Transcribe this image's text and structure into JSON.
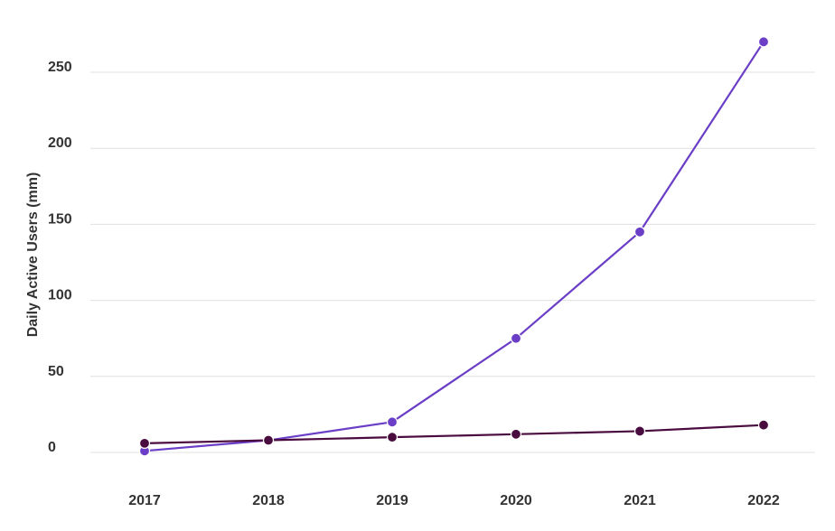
{
  "chart_data": {
    "type": "line",
    "title": "",
    "xlabel": "",
    "ylabel": "Daily Active Users (mm)",
    "categories": [
      "2017",
      "2018",
      "2019",
      "2020",
      "2021",
      "2022"
    ],
    "yticks": [
      "0",
      "50",
      "100",
      "150",
      "200",
      "250"
    ],
    "ylim": [
      0,
      270
    ],
    "grid": true,
    "legend": "none",
    "series": [
      {
        "values": [
          1,
          8,
          20,
          75,
          145,
          270
        ],
        "color": "#6a3ec6"
      },
      {
        "values": [
          6,
          8,
          10,
          12,
          14,
          18
        ],
        "color": "#4a0b3f"
      }
    ]
  }
}
